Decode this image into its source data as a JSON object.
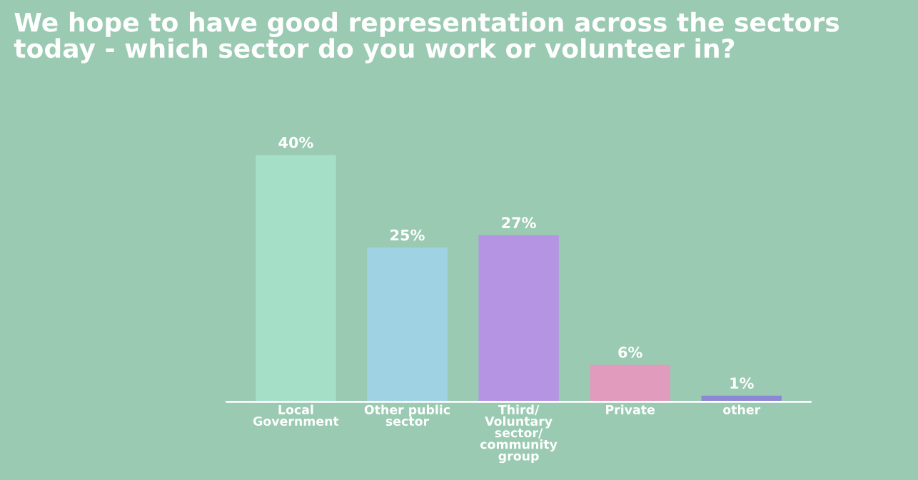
{
  "chart_data": {
    "type": "bar",
    "title": "We hope to have good representation across the sectors today - which sector do you work or volunteer in?",
    "categories": [
      "Local\nGovernment",
      "Other public\nsector",
      "Third/\nVoluntary\nsector/\ncommunity\ngroup",
      "Private",
      "other"
    ],
    "values": [
      40,
      25,
      27,
      6,
      1
    ],
    "colors": [
      "#a5dfc7",
      "#9fd3e3",
      "#b594e3",
      "#e09bbd",
      "#8d88d3"
    ],
    "value_labels": [
      "40%",
      "25%",
      "27%",
      "6%",
      "1%"
    ],
    "tick_labels": "x",
    "grid": false,
    "legend": false
  }
}
